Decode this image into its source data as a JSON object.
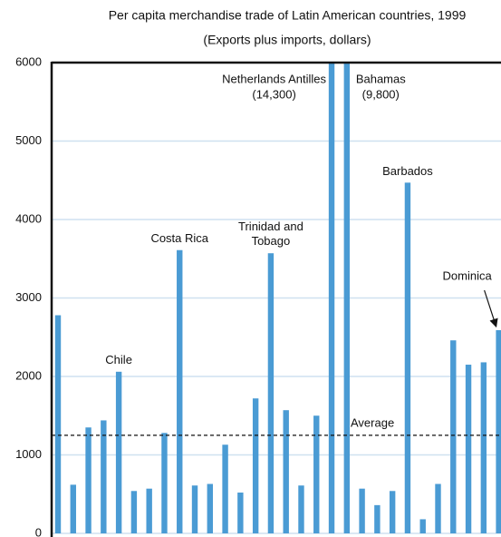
{
  "chart_data": {
    "type": "bar",
    "title": "Per capita merchandise trade of Latin American countries, 1999",
    "subtitle": "(Exports plus imports, dollars)",
    "categories": [
      null,
      null,
      null,
      null,
      "Chile",
      null,
      null,
      null,
      "Costa Rica",
      null,
      null,
      null,
      null,
      null,
      "Trinidad and Tobago",
      null,
      null,
      null,
      "Netherlands Antilles",
      "Bahamas",
      null,
      null,
      null,
      "Barbados",
      null,
      null,
      null,
      null,
      null,
      "Dominica"
    ],
    "values": [
      2780,
      620,
      1350,
      1440,
      2060,
      540,
      570,
      1280,
      3610,
      610,
      630,
      1130,
      520,
      1720,
      3570,
      1570,
      610,
      1500,
      14300,
      9800,
      570,
      360,
      540,
      4470,
      180,
      630,
      2460,
      2150,
      2180,
      2590
    ],
    "value_labels": [
      null,
      null,
      null,
      null,
      null,
      null,
      null,
      null,
      null,
      null,
      null,
      null,
      null,
      null,
      null,
      null,
      null,
      null,
      "(14,300)",
      "(9,800)",
      null,
      null,
      null,
      null,
      null,
      null,
      null,
      null,
      null,
      null
    ],
    "color": "#4a9bd4",
    "ylim": [
      0,
      6000
    ],
    "yticks": [
      0,
      1000,
      2000,
      3000,
      4000,
      5000,
      6000
    ],
    "grid": true,
    "reference_line": {
      "value": 1250,
      "label": "Average"
    }
  }
}
